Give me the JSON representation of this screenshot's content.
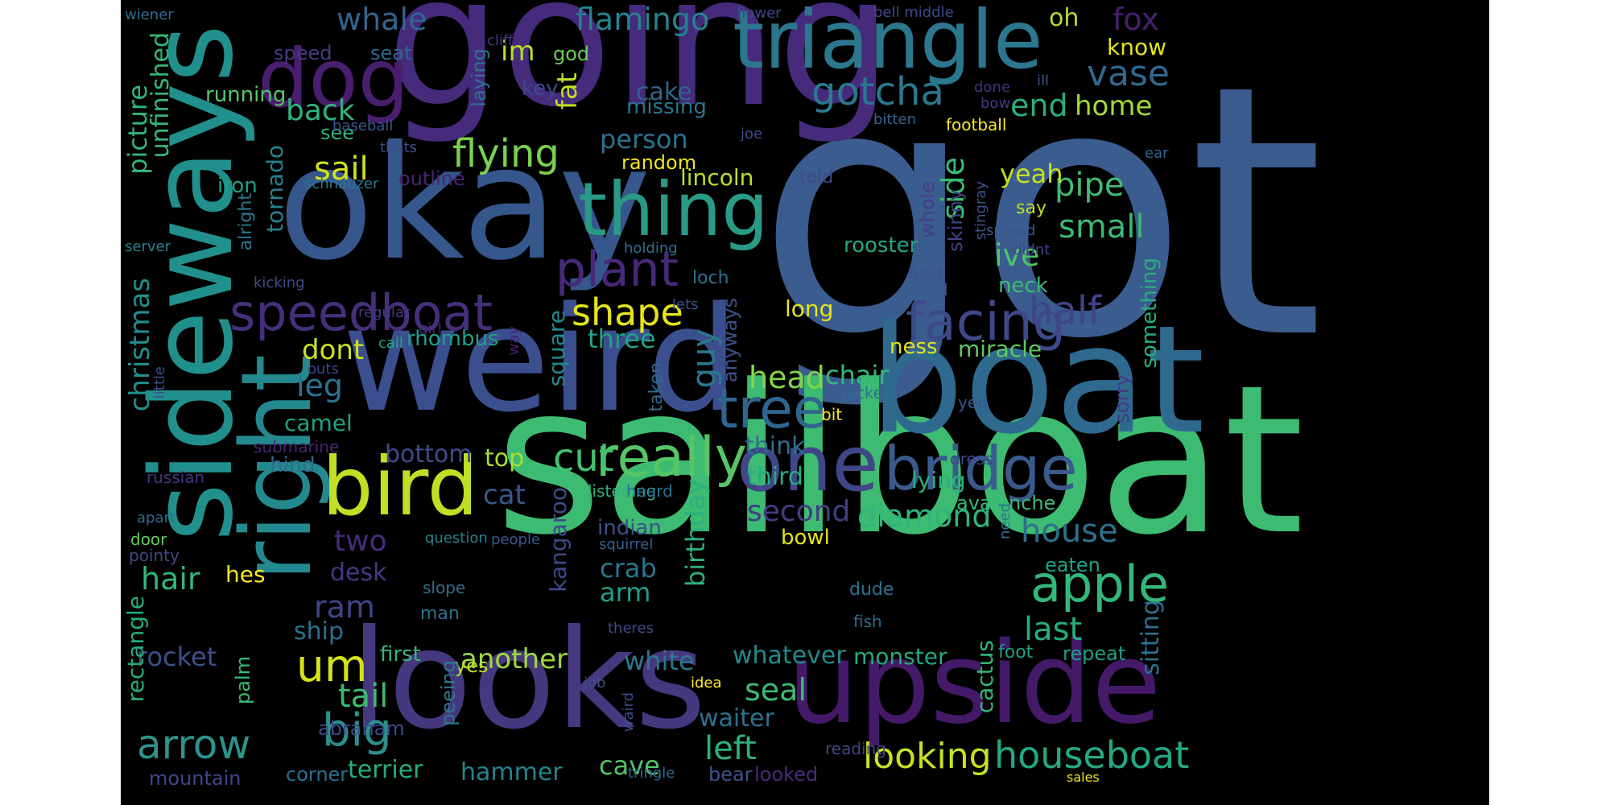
{
  "words": [
    {
      "text": "got",
      "color": "#3b5c8e"
    },
    {
      "text": "sailboat",
      "color": "#3dbb72"
    },
    {
      "text": "going",
      "color": "#462a7c"
    },
    {
      "text": "okay",
      "color": "#35578c"
    },
    {
      "text": "weird",
      "color": "#3b4f8e"
    },
    {
      "text": "boat",
      "color": "#2f6a8e"
    },
    {
      "text": "looks",
      "color": "#46387f"
    },
    {
      "text": "upside",
      "color": "#441a68"
    },
    {
      "text": "sideways",
      "color": "#21908c"
    },
    {
      "text": "right",
      "color": "#23898e"
    },
    {
      "text": "triangle",
      "color": "#2c768e"
    },
    {
      "text": "dog",
      "color": "#4a1e6e"
    },
    {
      "text": "thing",
      "color": "#2a9a86"
    },
    {
      "text": "bird",
      "color": "#c1df24"
    },
    {
      "text": "one",
      "color": "#3f4787"
    },
    {
      "text": "bridge",
      "color": "#3a5a8c"
    },
    {
      "text": "really",
      "color": "#56c567"
    },
    {
      "text": "speedboat",
      "color": "#452f7a"
    },
    {
      "text": "facing",
      "color": "#3e4989"
    },
    {
      "text": "plant",
      "color": "#482878"
    },
    {
      "text": "tree",
      "color": "#30658e"
    },
    {
      "text": "apple",
      "color": "#34b77a"
    },
    {
      "text": "big",
      "color": "#2c8f8c"
    },
    {
      "text": "arrow",
      "color": "#2d938b"
    },
    {
      "text": "um",
      "color": "#d5e21a"
    },
    {
      "text": "flying",
      "color": "#7ad151"
    },
    {
      "text": "houseboat",
      "color": "#24a884"
    },
    {
      "text": "looking",
      "color": "#c8e020"
    },
    {
      "text": "half",
      "color": "#404387"
    },
    {
      "text": "gotcha",
      "color": "#2a788e"
    },
    {
      "text": "vase",
      "color": "#31678e"
    },
    {
      "text": "whale",
      "color": "#32648e"
    },
    {
      "text": "flamingo",
      "color": "#25838e"
    },
    {
      "text": "fox",
      "color": "#481f70"
    },
    {
      "text": "oh",
      "color": "#b4de2c"
    },
    {
      "text": "know",
      "color": "#e2e418"
    },
    {
      "text": "im",
      "color": "#b5de2b"
    },
    {
      "text": "god",
      "color": "#6ccd5a"
    },
    {
      "text": "speed",
      "color": "#443a83"
    },
    {
      "text": "seat",
      "color": "#31688e"
    },
    {
      "text": "back",
      "color": "#2fb47c"
    },
    {
      "text": "running",
      "color": "#58c765"
    },
    {
      "text": "see",
      "color": "#31b57b"
    },
    {
      "text": "sail",
      "color": "#d2e21b"
    },
    {
      "text": "person",
      "color": "#2d718e"
    },
    {
      "text": "cake",
      "color": "#33628d"
    },
    {
      "text": "missing",
      "color": "#2a768e"
    },
    {
      "text": "random",
      "color": "#f1e51d"
    },
    {
      "text": "fat",
      "color": "#c0df25"
    },
    {
      "text": "key",
      "color": "#3e4a89"
    },
    {
      "text": "laying",
      "color": "#2b758e"
    },
    {
      "text": "end",
      "color": "#29af7f"
    },
    {
      "text": "home",
      "color": "#a2da37"
    },
    {
      "text": "pipe",
      "color": "#3fbc73"
    },
    {
      "text": "small",
      "color": "#3aba76"
    },
    {
      "text": "ive",
      "color": "#4ec36b"
    },
    {
      "text": "yeah",
      "color": "#c5e021"
    },
    {
      "text": "side",
      "color": "#3bbb75"
    },
    {
      "text": "rooster",
      "color": "#22a785"
    },
    {
      "text": "lincoln",
      "color": "#bddf26"
    },
    {
      "text": "told",
      "color": "#3e4989"
    },
    {
      "text": "long",
      "color": "#e7e419"
    },
    {
      "text": "shape",
      "color": "#e5e419"
    },
    {
      "text": "guy",
      "color": "#2a778e"
    },
    {
      "text": "three",
      "color": "#20a386"
    },
    {
      "text": "dont",
      "color": "#cde11d"
    },
    {
      "text": "leg",
      "color": "#2c738e"
    },
    {
      "text": "head",
      "color": "#84d44b"
    },
    {
      "text": "chair",
      "color": "#35b779"
    },
    {
      "text": "cut",
      "color": "#44bf70"
    },
    {
      "text": "top",
      "color": "#aadc32"
    },
    {
      "text": "bottom",
      "color": "#3e4c8a"
    },
    {
      "text": "cat",
      "color": "#38588c"
    },
    {
      "text": "third",
      "color": "#26ad81"
    },
    {
      "text": "think",
      "color": "#2f6c8e"
    },
    {
      "text": "second",
      "color": "#433d84"
    },
    {
      "text": "diamond",
      "color": "#2fb47c"
    },
    {
      "text": "house",
      "color": "#2d708e"
    },
    {
      "text": "last",
      "color": "#27ad81"
    },
    {
      "text": "bowl",
      "color": "#e5e419"
    },
    {
      "text": "avalanche",
      "color": "#37b878"
    },
    {
      "text": "lying",
      "color": "#29af7f"
    },
    {
      "text": "crab",
      "color": "#2a778e"
    },
    {
      "text": "arm",
      "color": "#1f9e89"
    },
    {
      "text": "indian",
      "color": "#3b518b"
    },
    {
      "text": "ram",
      "color": "#404588"
    },
    {
      "text": "ship",
      "color": "#2d708e"
    },
    {
      "text": "hair",
      "color": "#32b67a"
    },
    {
      "text": "desk",
      "color": "#443983"
    },
    {
      "text": "two",
      "color": "#472d7b"
    },
    {
      "text": "hes",
      "color": "#fde725"
    },
    {
      "text": "rocket",
      "color": "#3c508b"
    },
    {
      "text": "another",
      "color": "#a0da39"
    },
    {
      "text": "white",
      "color": "#29788e"
    },
    {
      "text": "whatever",
      "color": "#23898e"
    },
    {
      "text": "monster",
      "color": "#22a884"
    },
    {
      "text": "seal",
      "color": "#3cbb75"
    },
    {
      "text": "waiter",
      "color": "#2c728e"
    },
    {
      "text": "left",
      "color": "#2db27d"
    },
    {
      "text": "cave",
      "color": "#52c569"
    },
    {
      "text": "hammer",
      "color": "#26828e"
    },
    {
      "text": "terrier",
      "color": "#25ac82"
    },
    {
      "text": "tail",
      "color": "#3bbb75"
    },
    {
      "text": "abraham",
      "color": "#3e4a89"
    },
    {
      "text": "corner",
      "color": "#2e6f8e"
    },
    {
      "text": "mountain",
      "color": "#3f4788"
    },
    {
      "text": "bear",
      "color": "#3b528b"
    },
    {
      "text": "looked",
      "color": "#472c7a"
    },
    {
      "text": "reading",
      "color": "#3f4788"
    },
    {
      "text": "tringle",
      "color": "#31688e"
    },
    {
      "text": "sales",
      "color": "#f1e51d"
    },
    {
      "text": "repeat",
      "color": "#1fa088"
    },
    {
      "text": "foot",
      "color": "#1f9f88"
    },
    {
      "text": "job",
      "color": "#3b528b"
    },
    {
      "text": "idea",
      "color": "#fde725"
    },
    {
      "text": "yes",
      "color": "#bddf26"
    },
    {
      "text": "first",
      "color": "#35b779"
    },
    {
      "text": "camel",
      "color": "#1fa187"
    },
    {
      "text": "hind",
      "color": "#2f6b8e"
    },
    {
      "text": "submarine",
      "color": "#482576"
    },
    {
      "text": "russian",
      "color": "#453581"
    },
    {
      "text": "apart",
      "color": "#2e6d8e"
    },
    {
      "text": "door",
      "color": "#62cb5f"
    },
    {
      "text": "pointy",
      "color": "#3f4788"
    },
    {
      "text": "people",
      "color": "#38598c"
    },
    {
      "text": "question",
      "color": "#26828e"
    },
    {
      "text": "slope",
      "color": "#2f6c8e"
    },
    {
      "text": "man",
      "color": "#2c718e"
    },
    {
      "text": "listening",
      "color": "#2fb47c"
    },
    {
      "text": "heard",
      "color": "#2e6e8e"
    },
    {
      "text": "squirrel",
      "color": "#34618d"
    },
    {
      "text": "theres",
      "color": "#3e4c8a"
    },
    {
      "text": "dude",
      "color": "#2b758e"
    },
    {
      "text": "fish",
      "color": "#30698e"
    },
    {
      "text": "eaten",
      "color": "#1fa088"
    },
    {
      "text": "dress",
      "color": "#3f4889"
    },
    {
      "text": "yep",
      "color": "#39558c"
    },
    {
      "text": "bit",
      "color": "#fde725"
    },
    {
      "text": "jacked",
      "color": "#2e6d8e"
    },
    {
      "text": "ness",
      "color": "#e2e418"
    },
    {
      "text": "miracle",
      "color": "#5ec962"
    },
    {
      "text": "neck",
      "color": "#3bbb75"
    },
    {
      "text": "field",
      "color": "#3a538b"
    },
    {
      "text": "kind",
      "color": "#38598c"
    },
    {
      "text": "spread",
      "color": "#39568c"
    },
    {
      "text": "didnt",
      "color": "#3f4788"
    },
    {
      "text": "say",
      "color": "#c2df23"
    },
    {
      "text": "football",
      "color": "#fde725"
    },
    {
      "text": "bitten",
      "color": "#32658e"
    },
    {
      "text": "bow",
      "color": "#453882"
    },
    {
      "text": "done",
      "color": "#46327e"
    },
    {
      "text": "ill",
      "color": "#3a548c"
    },
    {
      "text": "bell middle",
      "color": "#3e4989"
    },
    {
      "text": "flower",
      "color": "#3f4788"
    },
    {
      "text": "cliff",
      "color": "#443983"
    },
    {
      "text": "wiener",
      "color": "#2e6d8e"
    },
    {
      "text": "baseball",
      "color": "#37598c"
    },
    {
      "text": "thats",
      "color": "#3d4e8a"
    },
    {
      "text": "schnauzer",
      "color": "#2a788e"
    },
    {
      "text": "iron",
      "color": "#1fa187"
    },
    {
      "text": "server",
      "color": "#25838e"
    },
    {
      "text": "kicking",
      "color": "#3e4c8a"
    },
    {
      "text": "outline",
      "color": "#482475"
    },
    {
      "text": "holding",
      "color": "#2e6f8e"
    },
    {
      "text": "lets",
      "color": "#3b528b"
    },
    {
      "text": "loch",
      "color": "#2c728e"
    },
    {
      "text": "regular",
      "color": "#453882"
    },
    {
      "text": "girl",
      "color": "#482878"
    },
    {
      "text": "call",
      "color": "#22a884"
    },
    {
      "text": "outs",
      "color": "#3f4889"
    },
    {
      "text": "rhombus",
      "color": "#1fa187"
    },
    {
      "text": "joe",
      "color": "#3e4a89"
    },
    {
      "text": "ear",
      "color": "#32658e"
    },
    {
      "text": "christmas",
      "color": "#21908d"
    },
    {
      "text": "picture",
      "color": "#32b67a"
    },
    {
      "text": "unfinished",
      "color": "#35b779"
    },
    {
      "text": "tornado",
      "color": "#26828e"
    },
    {
      "text": "alright",
      "color": "#2a788e"
    },
    {
      "text": "rectangle",
      "color": "#26ad81"
    },
    {
      "text": "palm",
      "color": "#3bbb75"
    },
    {
      "text": "little",
      "color": "#3c508b"
    },
    {
      "text": "way",
      "color": "#481f70"
    },
    {
      "text": "kangaroo",
      "color": "#3e4989"
    },
    {
      "text": "birthday",
      "color": "#2ab07f"
    },
    {
      "text": "square",
      "color": "#23898e"
    },
    {
      "text": "peeing",
      "color": "#2a778e"
    },
    {
      "text": "taken",
      "color": "#30698e"
    },
    {
      "text": "anyways",
      "color": "#3b528b"
    },
    {
      "text": "whole",
      "color": "#433e85"
    },
    {
      "text": "skinny",
      "color": "#414287"
    },
    {
      "text": "stingray",
      "color": "#3b528b"
    },
    {
      "text": "something",
      "color": "#29af7f"
    },
    {
      "text": "sitting",
      "color": "#2c728e"
    },
    {
      "text": "sorry",
      "color": "#443983"
    },
    {
      "text": "cactus",
      "color": "#34b679"
    },
    {
      "text": "need",
      "color": "#2c728e"
    },
    {
      "text": "waird",
      "color": "#3e4c8a"
    }
  ]
}
